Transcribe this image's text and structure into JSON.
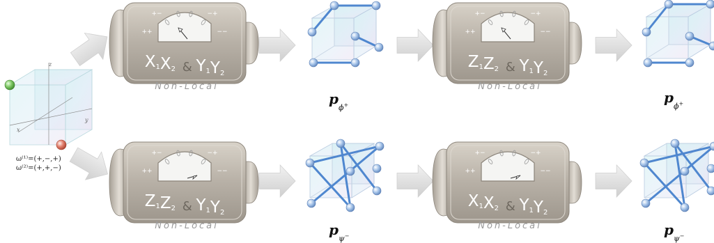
{
  "devices": [
    {
      "id": "d1",
      "op": [
        {
          "l": "X",
          "s": "1"
        },
        {
          "l": "X",
          "s": "2"
        }
      ],
      "op2": [
        {
          "l": "Y",
          "s": "1"
        },
        {
          "l": "Y",
          "s": "2"
        }
      ],
      "caption": "Non-Local"
    },
    {
      "id": "d2",
      "op": [
        {
          "l": "Z",
          "s": "1"
        },
        {
          "l": "Z",
          "s": "2"
        }
      ],
      "op2": [
        {
          "l": "Y",
          "s": "1"
        },
        {
          "l": "Y",
          "s": "2"
        }
      ],
      "caption": "Non-Local"
    },
    {
      "id": "d3",
      "op": [
        {
          "l": "Z",
          "s": "1"
        },
        {
          "l": "Z",
          "s": "2"
        }
      ],
      "op2": [
        {
          "l": "Y",
          "s": "1"
        },
        {
          "l": "Y",
          "s": "2"
        }
      ],
      "caption": "Non-Local"
    },
    {
      "id": "d4",
      "op": [
        {
          "l": "X",
          "s": "1"
        },
        {
          "l": "X",
          "s": "2"
        }
      ],
      "op2": [
        {
          "l": "Y",
          "s": "1"
        },
        {
          "l": "Y",
          "s": "2"
        }
      ],
      "caption": "Non-Local"
    }
  ],
  "ampersand": "&",
  "dial": {
    "tl": "+−",
    "tr": "−+",
    "ml": "++",
    "mr": "−−"
  },
  "results": [
    {
      "base": "p",
      "sub": "ϕ",
      "sup": "+"
    },
    {
      "base": "p",
      "sub": "ϕ",
      "sup": "+"
    },
    {
      "base": "p",
      "sub": "ψ",
      "sup": "−"
    },
    {
      "base": "p",
      "sub": "ψ",
      "sup": "−"
    }
  ],
  "input": {
    "omega1": "ω⁽¹⁾=(+,−,+)",
    "omega2": "ω⁽²⁾=(+,+,−)",
    "axes": {
      "z": "z",
      "x": "x",
      "y": "y"
    }
  }
}
